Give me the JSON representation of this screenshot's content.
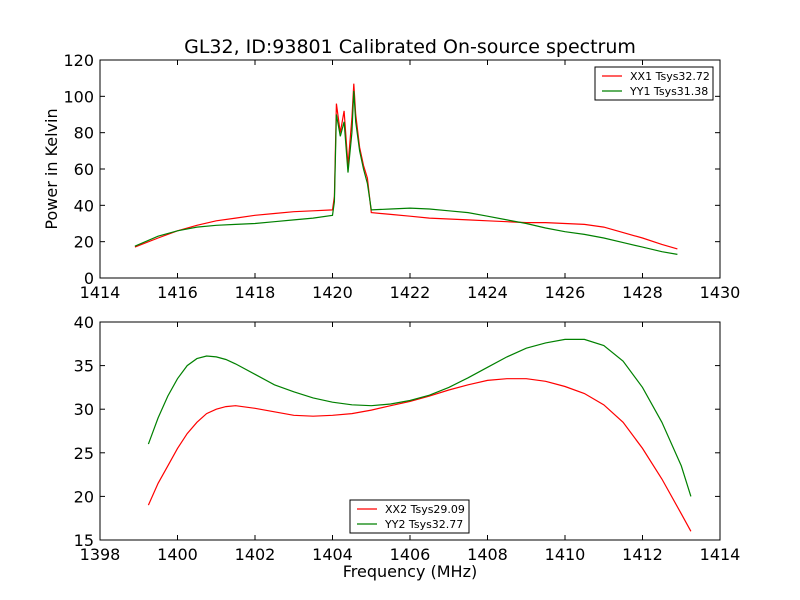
{
  "title": "GL32, ID:93801 Calibrated On-source spectrum",
  "chart_data": [
    {
      "type": "line",
      "ylabel": "Power in Kelvin",
      "xlabel": "",
      "xlim": [
        1414,
        1430
      ],
      "ylim": [
        0,
        120
      ],
      "xticks": [
        1414,
        1416,
        1418,
        1420,
        1422,
        1424,
        1426,
        1428,
        1430
      ],
      "yticks": [
        0,
        20,
        40,
        60,
        80,
        100,
        120
      ],
      "legend": "top-right",
      "series": [
        {
          "name": "XX1 Tsys32.72",
          "color": "#ff0000",
          "x": [
            1414.9,
            1415.5,
            1416.0,
            1416.5,
            1417.0,
            1417.5,
            1418.0,
            1418.5,
            1419.0,
            1419.5,
            1420.0,
            1420.05,
            1420.1,
            1420.2,
            1420.3,
            1420.4,
            1420.5,
            1420.55,
            1420.6,
            1420.7,
            1420.8,
            1420.9,
            1421.0,
            1421.5,
            1422.0,
            1422.5,
            1423.0,
            1423.5,
            1424.0,
            1424.5,
            1425.0,
            1425.5,
            1426.0,
            1426.5,
            1427.0,
            1427.5,
            1428.0,
            1428.5,
            1428.9
          ],
          "y": [
            17,
            22,
            26,
            29,
            31.5,
            33,
            34.5,
            35.5,
            36.5,
            37,
            37.5,
            45,
            96,
            80,
            92,
            62,
            88,
            107,
            90,
            72,
            62,
            55,
            36,
            35,
            34,
            33,
            32.5,
            32,
            31.5,
            31,
            30.5,
            30.5,
            30,
            29.5,
            28,
            25,
            22,
            18.5,
            16
          ]
        },
        {
          "name": "YY1 Tsys31.38",
          "color": "#008000",
          "x": [
            1414.9,
            1415.5,
            1416.0,
            1416.5,
            1417.0,
            1417.5,
            1418.0,
            1418.5,
            1419.0,
            1419.5,
            1420.0,
            1420.05,
            1420.1,
            1420.2,
            1420.3,
            1420.4,
            1420.5,
            1420.55,
            1420.6,
            1420.7,
            1420.8,
            1420.9,
            1421.0,
            1421.5,
            1422.0,
            1422.5,
            1423.0,
            1423.5,
            1424.0,
            1424.5,
            1425.0,
            1425.5,
            1426.0,
            1426.5,
            1427.0,
            1427.5,
            1428.0,
            1428.5,
            1428.9
          ],
          "y": [
            17.5,
            23,
            26,
            28,
            29,
            29.5,
            30,
            31,
            32,
            33,
            34.5,
            42,
            90,
            78,
            86,
            58,
            80,
            103,
            86,
            70,
            60,
            52,
            37.5,
            38,
            38.5,
            38,
            37,
            36,
            34,
            32,
            30,
            27.5,
            25.5,
            24,
            22,
            19.5,
            17,
            14.5,
            13
          ]
        }
      ]
    },
    {
      "type": "line",
      "ylabel": "",
      "xlabel": "Frequency (MHz)",
      "xlim": [
        1398,
        1414
      ],
      "ylim": [
        15,
        40
      ],
      "xticks": [
        1398,
        1400,
        1402,
        1404,
        1406,
        1408,
        1410,
        1412,
        1414
      ],
      "yticks": [
        15,
        20,
        25,
        30,
        35,
        40
      ],
      "legend": "bottom-center",
      "series": [
        {
          "name": "XX2 Tsys29.09",
          "color": "#ff0000",
          "x": [
            1399.25,
            1399.5,
            1399.75,
            1400.0,
            1400.25,
            1400.5,
            1400.75,
            1401.0,
            1401.25,
            1401.5,
            1402.0,
            1402.5,
            1403.0,
            1403.5,
            1404.0,
            1404.5,
            1405.0,
            1405.5,
            1406.0,
            1406.5,
            1407.0,
            1407.5,
            1408.0,
            1408.5,
            1409.0,
            1409.5,
            1410.0,
            1410.5,
            1411.0,
            1411.5,
            1412.0,
            1412.5,
            1413.0,
            1413.25
          ],
          "y": [
            19,
            21.5,
            23.5,
            25.5,
            27.2,
            28.5,
            29.5,
            30.0,
            30.3,
            30.4,
            30.1,
            29.7,
            29.3,
            29.2,
            29.3,
            29.5,
            29.9,
            30.4,
            30.9,
            31.5,
            32.2,
            32.8,
            33.3,
            33.5,
            33.5,
            33.2,
            32.6,
            31.8,
            30.5,
            28.5,
            25.5,
            22,
            18,
            16
          ]
        },
        {
          "name": "YY2 Tsys32.77",
          "color": "#008000",
          "x": [
            1399.25,
            1399.5,
            1399.75,
            1400.0,
            1400.25,
            1400.5,
            1400.75,
            1401.0,
            1401.25,
            1401.5,
            1402.0,
            1402.5,
            1403.0,
            1403.5,
            1404.0,
            1404.5,
            1405.0,
            1405.5,
            1406.0,
            1406.5,
            1407.0,
            1407.5,
            1408.0,
            1408.5,
            1409.0,
            1409.5,
            1410.0,
            1410.5,
            1411.0,
            1411.5,
            1412.0,
            1412.5,
            1413.0,
            1413.25
          ],
          "y": [
            26,
            29,
            31.5,
            33.5,
            35,
            35.8,
            36.1,
            36.0,
            35.7,
            35.2,
            34.0,
            32.8,
            32.0,
            31.3,
            30.8,
            30.5,
            30.4,
            30.6,
            31.0,
            31.6,
            32.5,
            33.6,
            34.8,
            36.0,
            37.0,
            37.6,
            38.0,
            38.0,
            37.3,
            35.5,
            32.5,
            28.5,
            23.5,
            20
          ]
        }
      ]
    }
  ]
}
